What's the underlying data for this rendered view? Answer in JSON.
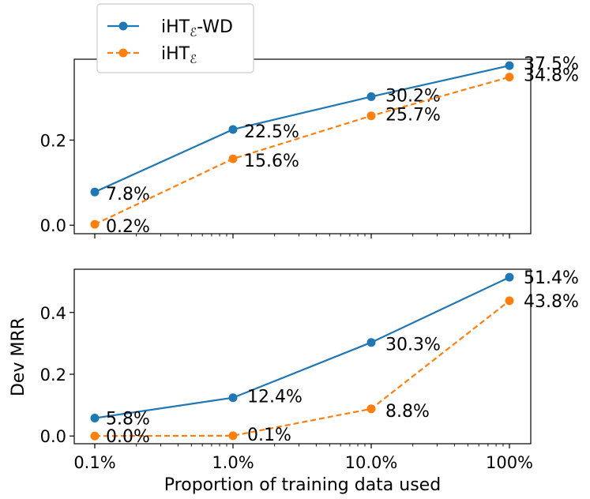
{
  "chart_data": [
    {
      "type": "line",
      "panel": "top",
      "categories": [
        "0.1%",
        "1.0%",
        "10.0%",
        "100%"
      ],
      "x": [
        0.1,
        1.0,
        10.0,
        100
      ],
      "xscale": "log",
      "ylabel": "",
      "xlabel": "",
      "ylim": [
        -0.02,
        0.39
      ],
      "yticks": [
        0.0,
        0.2
      ],
      "ytick_labels": [
        "0.0",
        "0.2"
      ],
      "series": [
        {
          "name": "iHT_E-WD",
          "color": "#1f77b4",
          "dash": "solid",
          "values": [
            0.078,
            0.225,
            0.302,
            0.375
          ],
          "labels": [
            "7.8%",
            "22.5%",
            "30.2%",
            "37.5%"
          ]
        },
        {
          "name": "iHT_E",
          "color": "#ff7f0e",
          "dash": "dashed",
          "values": [
            0.002,
            0.156,
            0.257,
            0.348
          ],
          "labels": [
            "0.2%",
            "15.6%",
            "25.7%",
            "34.8%"
          ]
        }
      ]
    },
    {
      "type": "line",
      "panel": "bottom",
      "categories": [
        "0.1%",
        "1.0%",
        "10.0%",
        "100%"
      ],
      "x": [
        0.1,
        1.0,
        10.0,
        100
      ],
      "xscale": "log",
      "ylabel": "Dev MRR",
      "xlabel": "Proportion of training data used",
      "ylim": [
        -0.025,
        0.54
      ],
      "yticks": [
        0.0,
        0.2,
        0.4
      ],
      "ytick_labels": [
        "0.0",
        "0.2",
        "0.4"
      ],
      "series": [
        {
          "name": "iHT_E-WD",
          "color": "#1f77b4",
          "dash": "solid",
          "values": [
            0.058,
            0.124,
            0.303,
            0.514
          ],
          "labels": [
            "5.8%",
            "12.4%",
            "30.3%",
            "51.4%"
          ]
        },
        {
          "name": "iHT_E",
          "color": "#ff7f0e",
          "dash": "dashed",
          "values": [
            0.0,
            0.001,
            0.088,
            0.438
          ],
          "labels": [
            "0.0%",
            "0.1%",
            "8.8%",
            "43.8%"
          ]
        }
      ]
    }
  ],
  "legend": {
    "position": "top-left",
    "items": [
      {
        "base": "iHT",
        "sub": "ℰ",
        "suffix": "-WD",
        "color": "#1f77b4",
        "dash": "solid"
      },
      {
        "base": "iHT",
        "sub": "ℰ",
        "suffix": "",
        "color": "#ff7f0e",
        "dash": "dashed"
      }
    ]
  }
}
